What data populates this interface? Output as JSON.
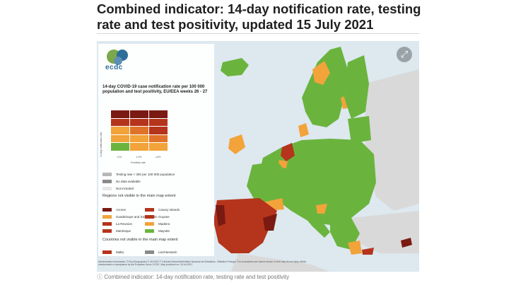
{
  "headline": "Combined indicator: 14-day notification rate, testing rate and test positivity, updated 15 July 2021",
  "logo_text": "ecdc",
  "expand_icon": "expand-icon",
  "legend": {
    "title": "14-day COVID-19 case notification rate per 100 000 population and test positivity, EU/EEA weeks 26 - 27",
    "y_axis_label": "14-day notification rate",
    "x_axis_label": "Positivity rate",
    "x_ticks": [
      "<1%",
      "1-4%",
      "≥4%"
    ],
    "matrix_rows": [
      [
        "#7a1a12",
        "#7a1a12",
        "#7a1a12"
      ],
      [
        "#b5341c",
        "#b5341c",
        "#b5341c"
      ],
      [
        "#f2a33a",
        "#e0732a",
        "#b5341c"
      ],
      [
        "#f2a33a",
        "#f2a33a",
        "#e0732a"
      ],
      [
        "#6ab43e",
        "#f2a33a",
        "#f2a33a"
      ]
    ],
    "status_items": [
      {
        "label": "Testing rate < 300 per 100 000 population",
        "color": "#b8b8b8"
      },
      {
        "label": "No data available",
        "color": "#8a8a8a"
      },
      {
        "label": "Not included",
        "color": "#e6e6e6"
      }
    ],
    "regions_title": "Regions not visible in the main map extent",
    "regions": [
      {
        "label": "Azores",
        "color": "#7a1a12"
      },
      {
        "label": "Canary Islands",
        "color": "#b5341c"
      },
      {
        "label": "Guadeloupe and Saint Martin",
        "color": "#f2a33a"
      },
      {
        "label": "Guyane",
        "color": "#b5341c"
      },
      {
        "label": "La Reunion",
        "color": "#b5341c"
      },
      {
        "label": "Madeira",
        "color": "#f2a33a"
      },
      {
        "label": "Martinique",
        "color": "#b5341c"
      },
      {
        "label": "Mayotte",
        "color": "#6ab43e"
      }
    ],
    "countries_title": "Countries not visible in the main map extent",
    "countries": [
      {
        "label": "Malta",
        "color": "#b5341c"
      },
      {
        "label": "Liechtenstein",
        "color": "#8a8a8a"
      }
    ]
  },
  "credits": "Administrative boundaries: © EuroGeographics © UN-FAO © Turkstat (Kartverket/Instituto Nacional de Estatística - Statistics Portugal. The boundaries and names shown on this map do not imply official endorsement or acceptance by the European Union. ECDC. Map produced on: 15 Jul 2021",
  "caption": "Combined indicator: 14-day notification rate, testing rate and test positivity",
  "colors": {
    "green": "#6ab43e",
    "orange": "#f2a33a",
    "red": "#b5341c",
    "dark_red": "#7a1a12",
    "sea": "#dde8ef",
    "non_eu": "#d9d9d9"
  }
}
